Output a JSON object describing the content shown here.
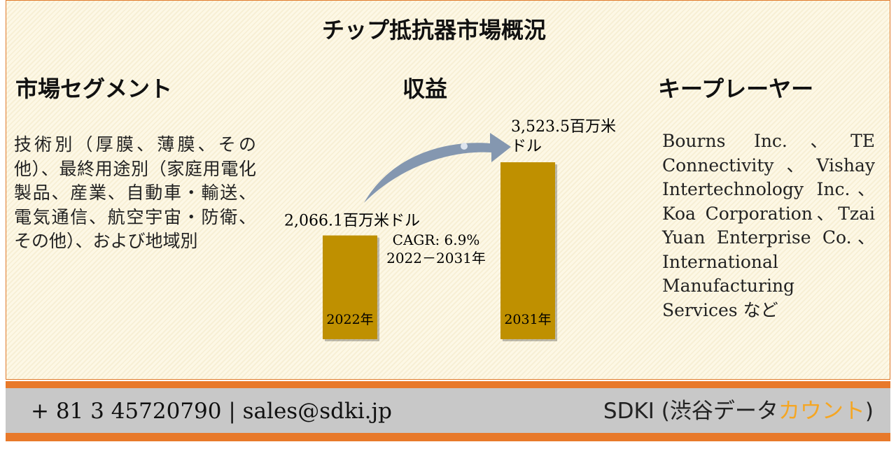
{
  "header": {
    "title": "チップ抵抗器市場概況"
  },
  "segments": {
    "title": "市場セグメント",
    "text": "技術別（厚膜、薄膜、その他）、最終用途別（家庭用電化製品、産業、自動車・輸送、電気通信、航空宇宙・防衛、その他）、および地域別"
  },
  "revenue": {
    "title": "収益",
    "bars": [
      {
        "year": "2022年",
        "value": 2066.1,
        "label": "2,066.1百万米ドル"
      },
      {
        "year": "2031年",
        "value": 3523.5,
        "label": "3,523.5百万米ドル"
      }
    ],
    "cagr": "CAGR: 6.9%",
    "period": "2022－2031年",
    "color": "#bf9000"
  },
  "players": {
    "title": "キープレーヤー",
    "text": "Bourns Inc.、TE Connectivity、Vishay Intertechnology Inc.、Koa Corporation、Tzai Yuan Enterprise Co.、International Manufacturing Services など"
  },
  "footer": {
    "contact": "+ 81 3 45720790 | sales@sdki.jp",
    "brand": "SDKI (渋谷データ",
    "brand_accent": "カウント",
    "brand_end": ")"
  }
}
